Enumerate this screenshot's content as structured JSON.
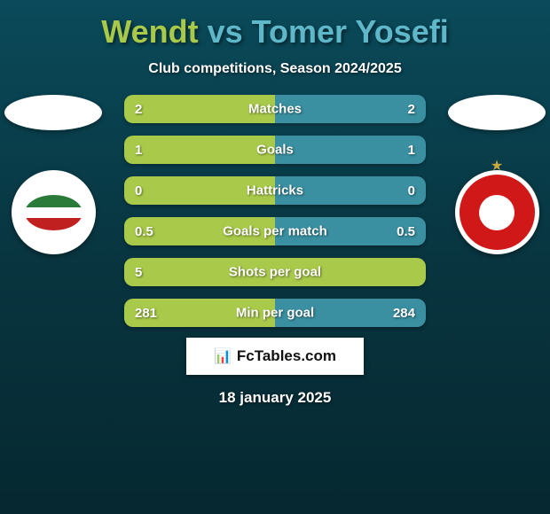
{
  "title": {
    "player1": "Wendt",
    "vs": "vs",
    "player2": "Tomer Yosefi"
  },
  "subtitle": "Club competitions, Season 2024/2025",
  "colors": {
    "player1_bar": "#a8c94a",
    "player2_bar": "#3a8fa0",
    "player1_title": "#a8c94a",
    "player2_title": "#5fb8c9"
  },
  "stats": [
    {
      "label": "Matches",
      "left_val": "2",
      "right_val": "2",
      "left_pct": 50,
      "right_pct": 50
    },
    {
      "label": "Goals",
      "left_val": "1",
      "right_val": "1",
      "left_pct": 50,
      "right_pct": 50
    },
    {
      "label": "Hattricks",
      "left_val": "0",
      "right_val": "0",
      "left_pct": 50,
      "right_pct": 50
    },
    {
      "label": "Goals per match",
      "left_val": "0.5",
      "right_val": "0.5",
      "left_pct": 50,
      "right_pct": 50
    },
    {
      "label": "Shots per goal",
      "left_val": "5",
      "right_val": "",
      "left_pct": 100,
      "right_pct": 0
    },
    {
      "label": "Min per goal",
      "left_val": "281",
      "right_val": "284",
      "left_pct": 50,
      "right_pct": 50
    }
  ],
  "watermark": "FcTables.com",
  "date": "18 january 2025",
  "badges": {
    "left_alt": "lechia-gdansk-badge",
    "right_alt": "hapoel-beer-sheva-badge"
  }
}
